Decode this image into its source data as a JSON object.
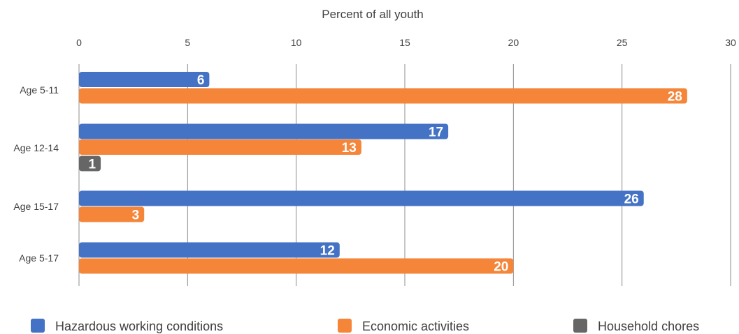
{
  "chart_data": {
    "type": "bar",
    "orientation": "horizontal",
    "xlabel": "Percent of all youth",
    "xlim": [
      0,
      30
    ],
    "xticks": [
      0,
      5,
      10,
      15,
      20,
      25,
      30
    ],
    "categories": [
      "Age 5-11",
      "Age 12-14",
      "Age 15-17",
      "Age 5-17"
    ],
    "series": [
      {
        "name": "Hazardous working conditions",
        "color": "#4472c4",
        "values": [
          6,
          17,
          26,
          12
        ]
      },
      {
        "name": "Economic activities",
        "color": "#f58538",
        "values": [
          28,
          13,
          3,
          20
        ]
      },
      {
        "name": "Household chores",
        "color": "#666666",
        "values": [
          null,
          1,
          null,
          null
        ]
      }
    ],
    "grid": true,
    "legend_position": "bottom"
  }
}
